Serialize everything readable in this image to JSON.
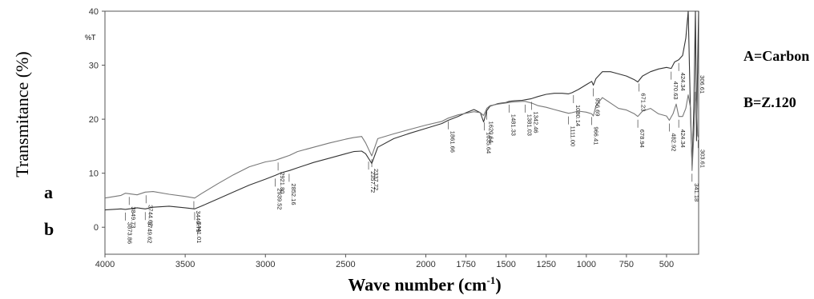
{
  "chart_data": {
    "type": "line",
    "title": "",
    "xlabel": "Wave number (cm",
    "xlabel_exp": "-1",
    "xlabel_tail": ")",
    "ylabel": "Transmitance (%)",
    "yunit_tag": "%T",
    "xlim": [
      4000,
      300
    ],
    "ylim": [
      -5,
      40
    ],
    "x_ticks": [
      4000,
      3500,
      3000,
      2500,
      2000,
      1750,
      1500,
      1250,
      1000,
      750,
      500
    ],
    "y_ticks": [
      0,
      10,
      20,
      30,
      40
    ],
    "legend": [
      "A=Carbon",
      "B=Z.120"
    ],
    "series_labels": [
      "a",
      "b"
    ],
    "series": [
      {
        "color": "#333333",
        "x": [
          4000,
          3900,
          3873,
          3800,
          3749,
          3700,
          3600,
          3500,
          3441,
          3400,
          3300,
          3200,
          3100,
          3000,
          2939,
          2900,
          2850,
          2800,
          2700,
          2600,
          2500,
          2450,
          2400,
          2375,
          2337,
          2300,
          2200,
          2100,
          2000,
          1900,
          1861,
          1800,
          1750,
          1700,
          1660,
          1640,
          1630,
          1620,
          1600,
          1550,
          1500,
          1481,
          1450,
          1400,
          1381,
          1342,
          1300,
          1250,
          1200,
          1150,
          1111,
          1090,
          1050,
          1000,
          966,
          956,
          940,
          900,
          850,
          800,
          750,
          700,
          679,
          650,
          600,
          550,
          500,
          471,
          450,
          424,
          400,
          380,
          365,
          350,
          341,
          330,
          320,
          313,
          306,
          300
        ],
        "y": [
          3.2,
          3.4,
          3.3,
          3.6,
          3.4,
          3.7,
          3.9,
          3.6,
          3.4,
          3.9,
          5.2,
          6.5,
          7.8,
          8.9,
          9.6,
          10.1,
          10.5,
          11.0,
          12.0,
          12.8,
          13.6,
          14.0,
          14.1,
          13.6,
          11.8,
          14.8,
          16.4,
          17.4,
          18.3,
          19.2,
          19.8,
          20.5,
          21.2,
          21.8,
          21.2,
          19.5,
          20.5,
          21.6,
          22.4,
          22.9,
          23.1,
          23.3,
          23.4,
          23.5,
          23.6,
          23.8,
          24.2,
          24.6,
          24.8,
          24.8,
          24.7,
          24.9,
          25.5,
          26.4,
          27.0,
          26.3,
          27.5,
          28.8,
          28.8,
          28.4,
          28.0,
          27.3,
          26.9,
          28.0,
          28.8,
          29.3,
          29.6,
          29.4,
          30.6,
          31.0,
          31.8,
          35.0,
          40.0,
          20.0,
          11.5,
          22.0,
          40.0,
          16.0,
          30.5,
          40.0
        ]
      },
      {
        "color": "#777777",
        "x": [
          4000,
          3900,
          3873,
          3800,
          3749,
          3700,
          3600,
          3500,
          3441,
          3400,
          3300,
          3200,
          3100,
          3000,
          2939,
          2900,
          2850,
          2800,
          2700,
          2600,
          2500,
          2450,
          2400,
          2375,
          2337,
          2300,
          2200,
          2100,
          2000,
          1900,
          1861,
          1800,
          1750,
          1700,
          1660,
          1640,
          1630,
          1620,
          1600,
          1550,
          1500,
          1481,
          1450,
          1400,
          1381,
          1342,
          1300,
          1250,
          1200,
          1150,
          1111,
          1090,
          1050,
          1000,
          966,
          956,
          940,
          900,
          850,
          800,
          750,
          700,
          679,
          650,
          600,
          550,
          500,
          483,
          460,
          440,
          424,
          400,
          380,
          365,
          350,
          341,
          330,
          320,
          313,
          306,
          300
        ],
        "y": [
          5.4,
          5.9,
          6.3,
          6.0,
          6.5,
          6.6,
          6.1,
          5.7,
          5.4,
          6.2,
          8.0,
          9.7,
          11.2,
          12.1,
          12.4,
          12.8,
          13.3,
          14.0,
          14.8,
          15.6,
          16.3,
          16.6,
          16.8,
          15.6,
          13.2,
          16.4,
          17.3,
          18.1,
          18.9,
          19.6,
          20.2,
          20.8,
          21.1,
          21.4,
          21.2,
          20.7,
          21.3,
          22.0,
          22.5,
          22.8,
          23.0,
          23.1,
          23.2,
          23.3,
          23.3,
          23.0,
          22.5,
          22.2,
          21.8,
          21.4,
          21.1,
          21.2,
          21.5,
          21.3,
          21.0,
          20.6,
          22.5,
          24.0,
          23.0,
          22.0,
          21.7,
          21.0,
          20.5,
          21.5,
          22.0,
          21.0,
          20.6,
          19.8,
          21.0,
          22.8,
          20.5,
          20.5,
          22.0,
          24.5,
          22.0,
          10.5,
          17.0,
          25.0,
          22.5,
          17.0,
          16.5
        ]
      }
    ],
    "peak_labels": [
      {
        "x": 3873,
        "text": "3873.86"
      },
      {
        "x": 3849,
        "text": "3849.73"
      },
      {
        "x": 3749,
        "text": "3749.62"
      },
      {
        "x": 3744,
        "text": "3744.62"
      },
      {
        "x": 3441,
        "text": "3441.01"
      },
      {
        "x": 3446,
        "text": "3446.79"
      },
      {
        "x": 2939,
        "text": "2939.52"
      },
      {
        "x": 2921,
        "text": "2921.80"
      },
      {
        "x": 2852,
        "text": "2852.16"
      },
      {
        "x": 2337,
        "text": "2337.72"
      },
      {
        "x": 2357,
        "text": "2357.72"
      },
      {
        "x": 1861,
        "text": "1861.66"
      },
      {
        "x": 1635,
        "text": "1635.64"
      },
      {
        "x": 1620,
        "text": "1620.64"
      },
      {
        "x": 1481,
        "text": "1481.33"
      },
      {
        "x": 1381,
        "text": "1381.03"
      },
      {
        "x": 1342,
        "text": "1342.46"
      },
      {
        "x": 1111,
        "text": "1111.00"
      },
      {
        "x": 1080,
        "text": "1080.14"
      },
      {
        "x": 966,
        "text": "966.41"
      },
      {
        "x": 956,
        "text": "956.69"
      },
      {
        "x": 679,
        "text": "678.94"
      },
      {
        "x": 671,
        "text": "671.23"
      },
      {
        "x": 483,
        "text": "482.92"
      },
      {
        "x": 471,
        "text": "470.63"
      },
      {
        "x": 424,
        "text": "424.34"
      },
      {
        "x": 424,
        "text": "424.34"
      },
      {
        "x": 341,
        "text": "341.18"
      },
      {
        "x": 306,
        "text": "306.61"
      },
      {
        "x": 303,
        "text": "303.61"
      }
    ]
  }
}
